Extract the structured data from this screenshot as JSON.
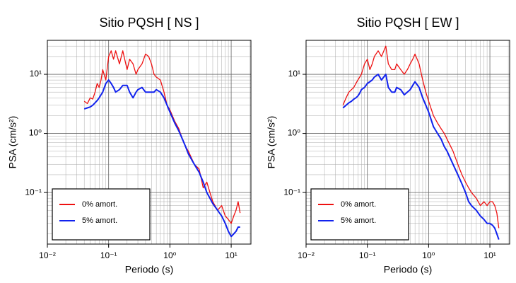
{
  "chart_data": [
    {
      "type": "line",
      "title": "Sitio PQSH [ NS ]",
      "xlabel": "Periodo (s)",
      "ylabel": "PSA (cm/s²)",
      "xscale": "log",
      "yscale": "log",
      "grid": true,
      "minor_grid": true,
      "legend": "lower left",
      "xlim": [
        0.01,
        21
      ],
      "ylim": [
        0.0134,
        37.6
      ],
      "xticks": [
        {
          "value": 0.01,
          "label": "10⁻²"
        },
        {
          "value": 0.1,
          "label": "10⁻¹"
        },
        {
          "value": 1,
          "label": "10⁰"
        },
        {
          "value": 10,
          "label": "10¹"
        }
      ],
      "yticks": [
        {
          "value": 0.1,
          "label": "10⁻¹"
        },
        {
          "value": 1,
          "label": "10⁰"
        },
        {
          "value": 10,
          "label": "10¹"
        }
      ],
      "x": [
        0.04,
        0.045,
        0.05,
        0.055,
        0.06,
        0.065,
        0.07,
        0.075,
        0.08,
        0.09,
        0.1,
        0.11,
        0.12,
        0.13,
        0.15,
        0.17,
        0.2,
        0.22,
        0.25,
        0.28,
        0.3,
        0.35,
        0.4,
        0.45,
        0.5,
        0.55,
        0.6,
        0.7,
        0.8,
        0.9,
        1.0,
        1.2,
        1.4,
        1.6,
        1.8,
        2.0,
        2.5,
        3.0,
        3.5,
        4.0,
        4.5,
        5,
        6,
        7,
        8,
        9,
        10,
        11,
        12,
        13,
        14
      ],
      "series": [
        {
          "name": "0% amort.",
          "color": "#ee1111",
          "values": [
            3.5,
            3.2,
            4,
            3.8,
            5,
            7,
            6,
            8,
            12,
            8,
            20,
            25,
            18,
            25,
            15,
            25,
            12,
            18,
            15,
            10,
            12,
            15,
            22,
            20,
            15,
            10,
            9,
            8,
            5,
            3,
            2.5,
            1.6,
            1.2,
            0.8,
            0.6,
            0.5,
            0.3,
            0.25,
            0.12,
            0.15,
            0.1,
            0.07,
            0.05,
            0.06,
            0.04,
            0.035,
            0.03,
            0.04,
            0.05,
            0.07,
            0.045
          ]
        },
        {
          "name": "5% amort.",
          "color": "#1122ee",
          "values": [
            2.6,
            2.7,
            2.8,
            3,
            3.3,
            3.6,
            4,
            4.5,
            5,
            7,
            8,
            7,
            6,
            5,
            5.5,
            6.5,
            6.5,
            5,
            4,
            5,
            5.5,
            6,
            5,
            5,
            5,
            5,
            5.5,
            5,
            4,
            3,
            2.3,
            1.5,
            1.1,
            0.8,
            0.6,
            0.45,
            0.3,
            0.22,
            0.15,
            0.1,
            0.08,
            0.065,
            0.05,
            0.04,
            0.03,
            0.022,
            0.018,
            0.02,
            0.022,
            0.026,
            0.026
          ]
        }
      ]
    },
    {
      "type": "line",
      "title": "Sitio PQSH [ EW ]",
      "xlabel": "Periodo (s)",
      "ylabel": "PSA (cm/s²)",
      "xscale": "log",
      "yscale": "log",
      "grid": true,
      "minor_grid": true,
      "legend": "lower left",
      "xlim": [
        0.01,
        21
      ],
      "ylim": [
        0.0134,
        37.6
      ],
      "xticks": [
        {
          "value": 0.01,
          "label": "10⁻²"
        },
        {
          "value": 0.1,
          "label": "10⁻¹"
        },
        {
          "value": 1,
          "label": "10⁰"
        },
        {
          "value": 10,
          "label": "10¹"
        }
      ],
      "yticks": [
        {
          "value": 0.1,
          "label": "10⁻¹"
        },
        {
          "value": 1,
          "label": "10⁰"
        },
        {
          "value": 10,
          "label": "10¹"
        }
      ],
      "x": [
        0.04,
        0.045,
        0.05,
        0.055,
        0.06,
        0.065,
        0.07,
        0.075,
        0.08,
        0.09,
        0.1,
        0.11,
        0.12,
        0.13,
        0.15,
        0.17,
        0.2,
        0.22,
        0.25,
        0.28,
        0.3,
        0.35,
        0.4,
        0.45,
        0.5,
        0.55,
        0.6,
        0.7,
        0.8,
        0.9,
        1.0,
        1.2,
        1.4,
        1.6,
        1.8,
        2.0,
        2.5,
        3.0,
        3.5,
        4.0,
        4.5,
        5,
        6,
        7,
        8,
        9,
        10,
        11,
        12,
        13,
        14
      ],
      "series": [
        {
          "name": "0% amort.",
          "color": "#ee1111",
          "values": [
            3,
            4,
            5,
            5.5,
            6,
            7,
            8,
            9,
            10,
            15,
            18,
            12,
            15,
            20,
            25,
            20,
            30,
            15,
            12,
            12,
            15,
            12,
            10,
            12,
            15,
            18,
            22,
            15,
            8,
            5,
            3.5,
            2,
            1.5,
            1.2,
            1,
            0.8,
            0.5,
            0.3,
            0.2,
            0.15,
            0.12,
            0.1,
            0.08,
            0.06,
            0.07,
            0.06,
            0.07,
            0.07,
            0.06,
            0.045,
            0.025
          ]
        },
        {
          "name": "5% amort.",
          "color": "#1122ee",
          "values": [
            2.7,
            3,
            3.3,
            3.5,
            3.8,
            4,
            4.3,
            4.8,
            5.5,
            6,
            7,
            7.5,
            8,
            9,
            10,
            8,
            10,
            6,
            5,
            5,
            6,
            5.5,
            4.5,
            5,
            5.5,
            6.5,
            7.5,
            6,
            4,
            3,
            2.3,
            1.3,
            1,
            0.8,
            0.6,
            0.5,
            0.3,
            0.2,
            0.14,
            0.1,
            0.07,
            0.06,
            0.05,
            0.04,
            0.035,
            0.03,
            0.03,
            0.028,
            0.025,
            0.02,
            0.016
          ]
        }
      ]
    }
  ]
}
